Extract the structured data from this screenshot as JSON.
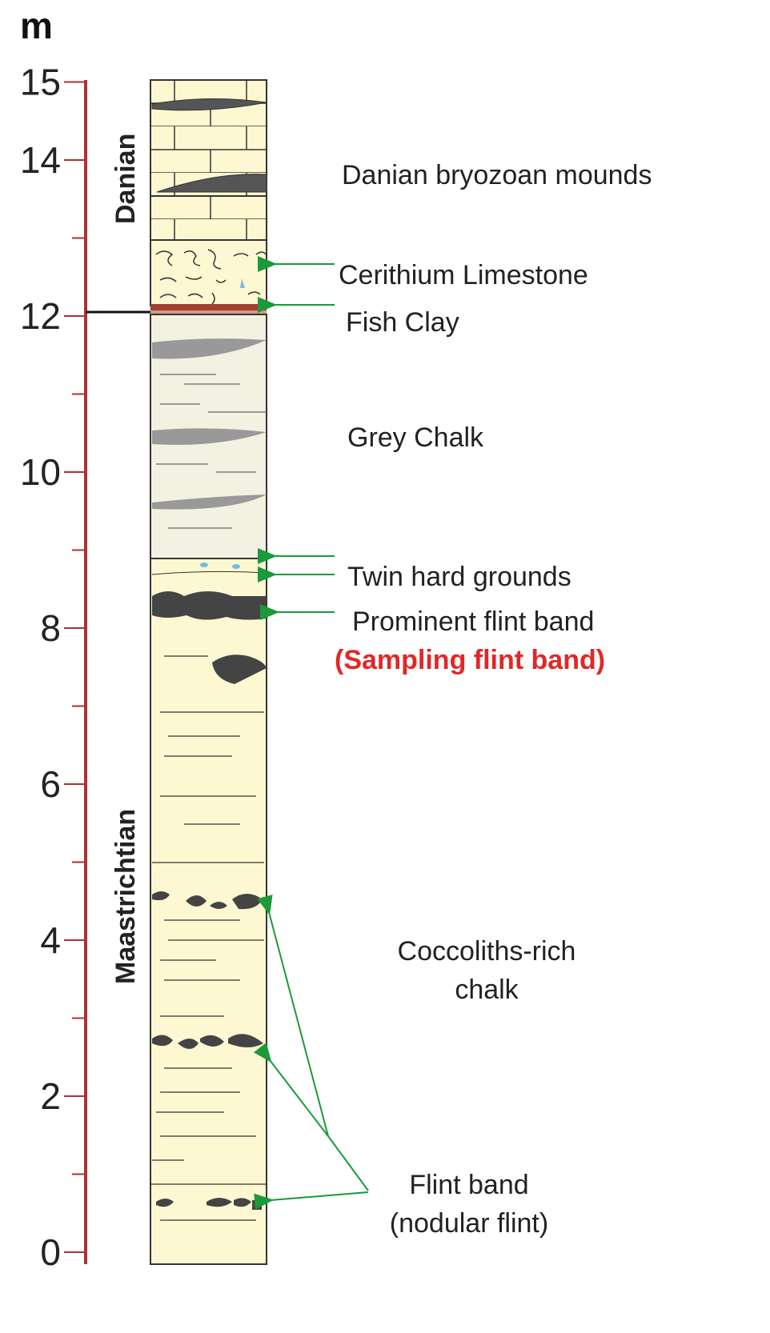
{
  "axis": {
    "unit": "m",
    "ticks": [
      0,
      2,
      4,
      6,
      8,
      10,
      12,
      14,
      15
    ],
    "minor_ticks": [
      1,
      3,
      5,
      7,
      9,
      11,
      13
    ]
  },
  "stages": [
    "Danian",
    "Maastrichtian"
  ],
  "units": [
    "Danian bryozoan mounds",
    "Cerithium Limestone",
    "Fish Clay",
    "Grey Chalk",
    "Twin hard grounds",
    "Prominent flint band",
    "(Sampling flint band)",
    "Coccoliths-rich",
    "chalk",
    "Flint band",
    "(nodular flint)"
  ]
}
